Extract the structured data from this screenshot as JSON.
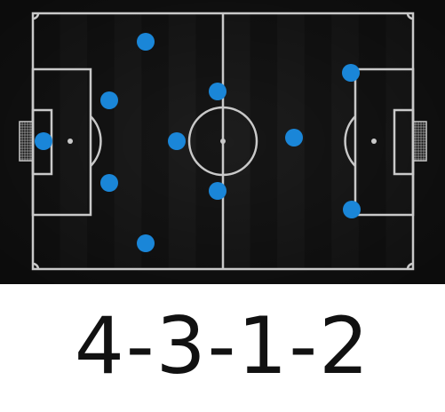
{
  "formation": {
    "label": "4-3-1-2"
  },
  "colors": {
    "pitch_dark": "#161616",
    "pitch_stripe": "#232323",
    "line": "#c9c9c9",
    "player_marker": "#1a86d8"
  },
  "players": [
    {
      "role": "goalkeeper"
    },
    {
      "role": "defender"
    },
    {
      "role": "defender"
    },
    {
      "role": "defender"
    },
    {
      "role": "defender"
    },
    {
      "role": "midfielder"
    },
    {
      "role": "midfielder"
    },
    {
      "role": "midfielder"
    },
    {
      "role": "attacking-midfielder"
    },
    {
      "role": "forward"
    },
    {
      "role": "forward"
    }
  ]
}
